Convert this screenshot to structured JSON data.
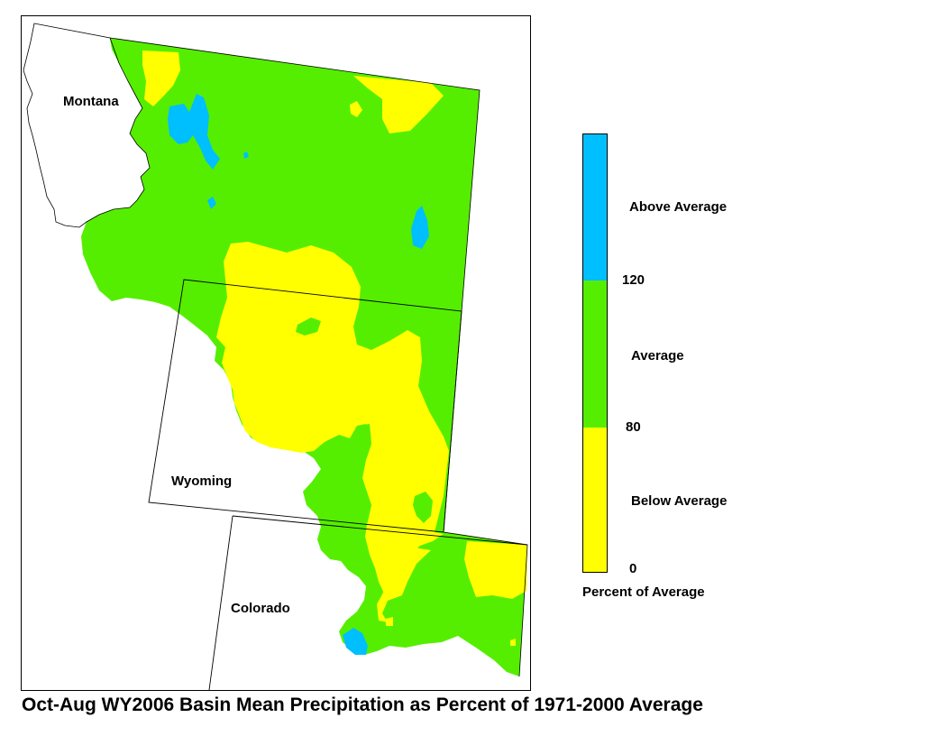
{
  "states": {
    "montana": "Montana",
    "wyoming": "Wyoming",
    "colorado": "Colorado"
  },
  "legend": {
    "classes": [
      {
        "label": "Above Average",
        "color": "#00BFFF"
      },
      {
        "label": "Average",
        "color": "#55EE00"
      },
      {
        "label": "Below Average",
        "color": "#FFFF00"
      }
    ],
    "breaks": [
      "120",
      "80",
      "0"
    ],
    "title": "Percent of Average"
  },
  "caption": "Oct-Aug WY2006 Basin Mean Precipitation as Percent of 1971-2000 Average"
}
